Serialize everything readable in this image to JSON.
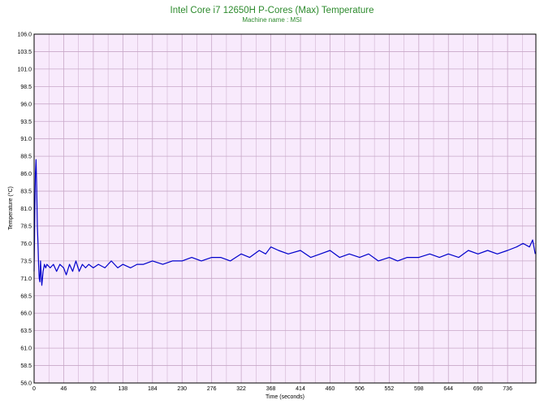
{
  "colors": {
    "title": "#2e8b2e",
    "plot_background": "#f8eafc",
    "grid": "#c8a8c8",
    "series": "#0000cc"
  },
  "chart_data": {
    "type": "line",
    "title": "Intel Core i7 12650H P-Cores (Max) Temperature",
    "subtitle": "Machine name : MSI",
    "xlabel": "Time (seconds)",
    "ylabel": "Temperature (°C)",
    "xlim": [
      0,
      780
    ],
    "ylim": [
      56.0,
      106.0
    ],
    "x_ticks": [
      "0",
      "46",
      "92",
      "138",
      "184",
      "230",
      "276",
      "322",
      "368",
      "414",
      "460",
      "506",
      "552",
      "598",
      "644",
      "690",
      "736"
    ],
    "y_ticks": [
      "56.0",
      "58.5",
      "61.0",
      "63.5",
      "66.0",
      "68.5",
      "71.0",
      "73.5",
      "76.0",
      "78.5",
      "81.0",
      "83.5",
      "86.0",
      "88.5",
      "91.0",
      "93.5",
      "96.0",
      "98.5",
      "101.0",
      "103.5",
      "106.0"
    ],
    "grid": true,
    "series": [
      {
        "x": [
          0,
          1,
          2,
          3,
          4,
          5,
          6,
          7,
          8,
          9,
          10,
          12,
          14,
          16,
          18,
          20,
          25,
          30,
          35,
          40,
          46,
          50,
          55,
          60,
          65,
          70,
          75,
          80,
          85,
          92,
          100,
          110,
          120,
          130,
          138,
          150,
          160,
          170,
          184,
          200,
          215,
          230,
          245,
          260,
          276,
          290,
          305,
          322,
          335,
          350,
          360,
          368,
          380,
          395,
          414,
          430,
          445,
          460,
          475,
          490,
          506,
          520,
          535,
          552,
          565,
          580,
          598,
          615,
          630,
          644,
          660,
          675,
          690,
          705,
          720,
          736,
          750,
          760,
          770,
          775,
          779
        ],
        "y": [
          72.0,
          80.0,
          86.0,
          88.0,
          84.0,
          78.5,
          76.0,
          73.0,
          71.0,
          70.5,
          73.5,
          70.0,
          72.0,
          73.0,
          72.5,
          73.0,
          72.5,
          73.0,
          72.0,
          73.0,
          72.5,
          71.5,
          73.0,
          72.0,
          73.5,
          72.0,
          73.0,
          72.5,
          73.0,
          72.5,
          73.0,
          72.5,
          73.5,
          72.5,
          73.0,
          72.5,
          73.0,
          73.0,
          73.5,
          73.0,
          73.5,
          73.5,
          74.0,
          73.5,
          74.0,
          74.0,
          73.5,
          74.5,
          74.0,
          75.0,
          74.5,
          75.5,
          75.0,
          74.5,
          75.0,
          74.0,
          74.5,
          75.0,
          74.0,
          74.5,
          74.0,
          74.5,
          73.5,
          74.0,
          73.5,
          74.0,
          74.0,
          74.5,
          74.0,
          74.5,
          74.0,
          75.0,
          74.5,
          75.0,
          74.5,
          75.0,
          75.5,
          76.0,
          75.5,
          76.5,
          74.5
        ]
      }
    ]
  }
}
